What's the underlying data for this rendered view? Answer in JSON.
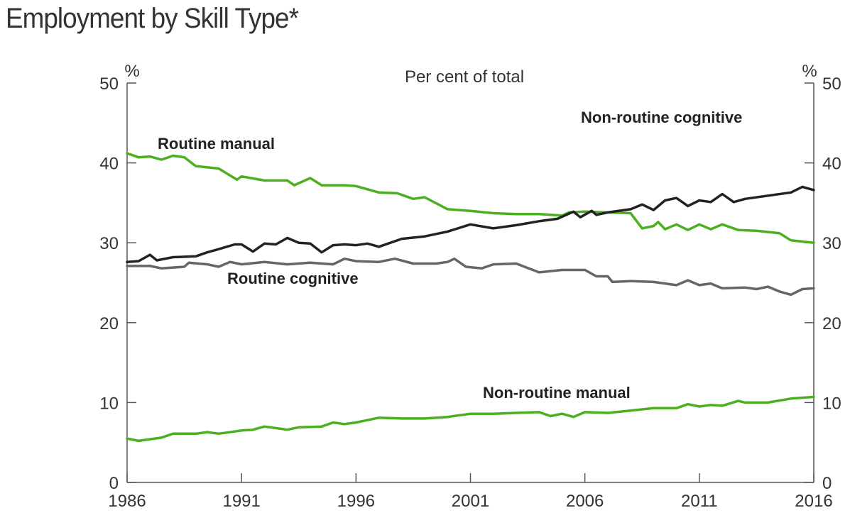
{
  "chart_data": {
    "type": "line",
    "title": "Employment by Skill Type*",
    "subtitle": "Per cent of total",
    "ylabel_left": "%",
    "ylabel_right": "%",
    "xlim": [
      1986,
      2016
    ],
    "ylim": [
      0,
      50
    ],
    "yticks": [
      0,
      10,
      20,
      30,
      40,
      50
    ],
    "xticks": [
      1986,
      1991,
      1996,
      2001,
      2006,
      2011,
      2016
    ],
    "grid": false,
    "series": [
      {
        "name": "Routine manual",
        "color": "#4caf1f",
        "x": [
          1986,
          1986.5,
          1987,
          1987.5,
          1988,
          1988.5,
          1989,
          1990,
          1990.8,
          1991,
          1992,
          1993,
          1993.3,
          1994,
          1994.5,
          1995.5,
          1996,
          1997,
          1997.8,
          1998.5,
          1999,
          2000,
          2001,
          2002,
          2003,
          2004,
          2005,
          2005.3,
          2006,
          2007,
          2008,
          2008.5,
          2009,
          2009.2,
          2009.5,
          2010,
          2010.5,
          2011,
          2011.5,
          2012,
          2012.7,
          2013.5,
          2014.5,
          2015,
          2016
        ],
        "y": [
          41.2,
          40.7,
          40.8,
          40.4,
          40.9,
          40.7,
          39.6,
          39.3,
          37.9,
          38.3,
          37.8,
          37.8,
          37.2,
          38.1,
          37.2,
          37.2,
          37.1,
          36.3,
          36.2,
          35.5,
          35.7,
          34.2,
          34.0,
          33.7,
          33.6,
          33.6,
          33.4,
          33.8,
          33.9,
          33.8,
          33.7,
          31.8,
          32.1,
          32.6,
          31.7,
          32.3,
          31.6,
          32.3,
          31.7,
          32.3,
          31.6,
          31.5,
          31.2,
          30.3,
          30.0
        ]
      },
      {
        "name": "Non-routine cognitive",
        "color": "#222222",
        "x": [
          1986,
          1986.5,
          1987,
          1987.3,
          1988,
          1989,
          1989.5,
          1990,
          1990.7,
          1991,
          1991.5,
          1992,
          1992.5,
          1993,
          1993.5,
          1994,
          1994.5,
          1995,
          1995.5,
          1996,
          1996.5,
          1997,
          1997.5,
          1998,
          1999,
          2000,
          2001,
          2002,
          2003,
          2004,
          2004.8,
          2005.5,
          2005.8,
          2006.3,
          2006.5,
          2007,
          2008,
          2008.5,
          2009,
          2009.5,
          2010,
          2010.5,
          2011,
          2011.5,
          2012,
          2012.5,
          2013,
          2014,
          2015,
          2015.5,
          2016
        ],
        "y": [
          27.6,
          27.7,
          28.5,
          27.8,
          28.2,
          28.3,
          28.8,
          29.2,
          29.8,
          29.8,
          28.9,
          29.9,
          29.8,
          30.6,
          30.0,
          29.9,
          28.8,
          29.7,
          29.8,
          29.7,
          29.9,
          29.5,
          30.0,
          30.5,
          30.8,
          31.4,
          32.3,
          31.8,
          32.2,
          32.7,
          33.0,
          33.9,
          33.2,
          34.0,
          33.5,
          33.8,
          34.2,
          34.8,
          34.1,
          35.3,
          35.6,
          34.6,
          35.3,
          35.1,
          36.1,
          35.1,
          35.5,
          35.9,
          36.3,
          37.0,
          36.6
        ]
      },
      {
        "name": "Routine cognitive",
        "color": "#666666",
        "x": [
          1986,
          1987,
          1987.5,
          1988.5,
          1988.7,
          1989.5,
          1990,
          1990.5,
          1991,
          1992,
          1993,
          1994,
          1995,
          1995.5,
          1996,
          1997,
          1997.7,
          1998.5,
          1999.5,
          2000,
          2000.3,
          2000.8,
          2001.5,
          2002,
          2003,
          2004,
          2005,
          2006,
          2006.5,
          2007,
          2007.2,
          2008,
          2009,
          2010,
          2010.5,
          2011,
          2011.5,
          2012,
          2013,
          2013.5,
          2014,
          2014.5,
          2015,
          2015.5,
          2016
        ],
        "y": [
          27.1,
          27.1,
          26.8,
          27.0,
          27.5,
          27.3,
          27.0,
          27.6,
          27.3,
          27.6,
          27.3,
          27.5,
          27.3,
          28.0,
          27.7,
          27.6,
          28.0,
          27.4,
          27.4,
          27.6,
          28.0,
          27.0,
          26.8,
          27.3,
          27.4,
          26.3,
          26.6,
          26.6,
          25.8,
          25.8,
          25.1,
          25.2,
          25.1,
          24.7,
          25.3,
          24.7,
          24.9,
          24.3,
          24.4,
          24.2,
          24.5,
          23.9,
          23.5,
          24.2,
          24.3
        ]
      },
      {
        "name": "Non-routine manual",
        "color": "#4caf1f",
        "x": [
          1986,
          1986.5,
          1987.5,
          1988,
          1989,
          1989.5,
          1990,
          1991,
          1991.5,
          1992,
          1992.5,
          1993,
          1993.5,
          1994.5,
          1995,
          1995.5,
          1996,
          1997,
          1998,
          1999,
          2000,
          2001,
          2002,
          2003,
          2004,
          2004.5,
          2005,
          2005.5,
          2006,
          2007,
          2008,
          2009,
          2010,
          2010.5,
          2011,
          2011.5,
          2012,
          2012.7,
          2013,
          2014,
          2015,
          2016
        ],
        "y": [
          5.5,
          5.2,
          5.6,
          6.1,
          6.1,
          6.3,
          6.1,
          6.5,
          6.6,
          7.0,
          6.8,
          6.6,
          6.9,
          7.0,
          7.5,
          7.3,
          7.5,
          8.1,
          8.0,
          8.0,
          8.2,
          8.6,
          8.6,
          8.7,
          8.8,
          8.3,
          8.6,
          8.2,
          8.8,
          8.7,
          9.0,
          9.3,
          9.3,
          9.8,
          9.5,
          9.7,
          9.6,
          10.2,
          10.0,
          10.0,
          10.5,
          10.7
        ]
      }
    ]
  }
}
